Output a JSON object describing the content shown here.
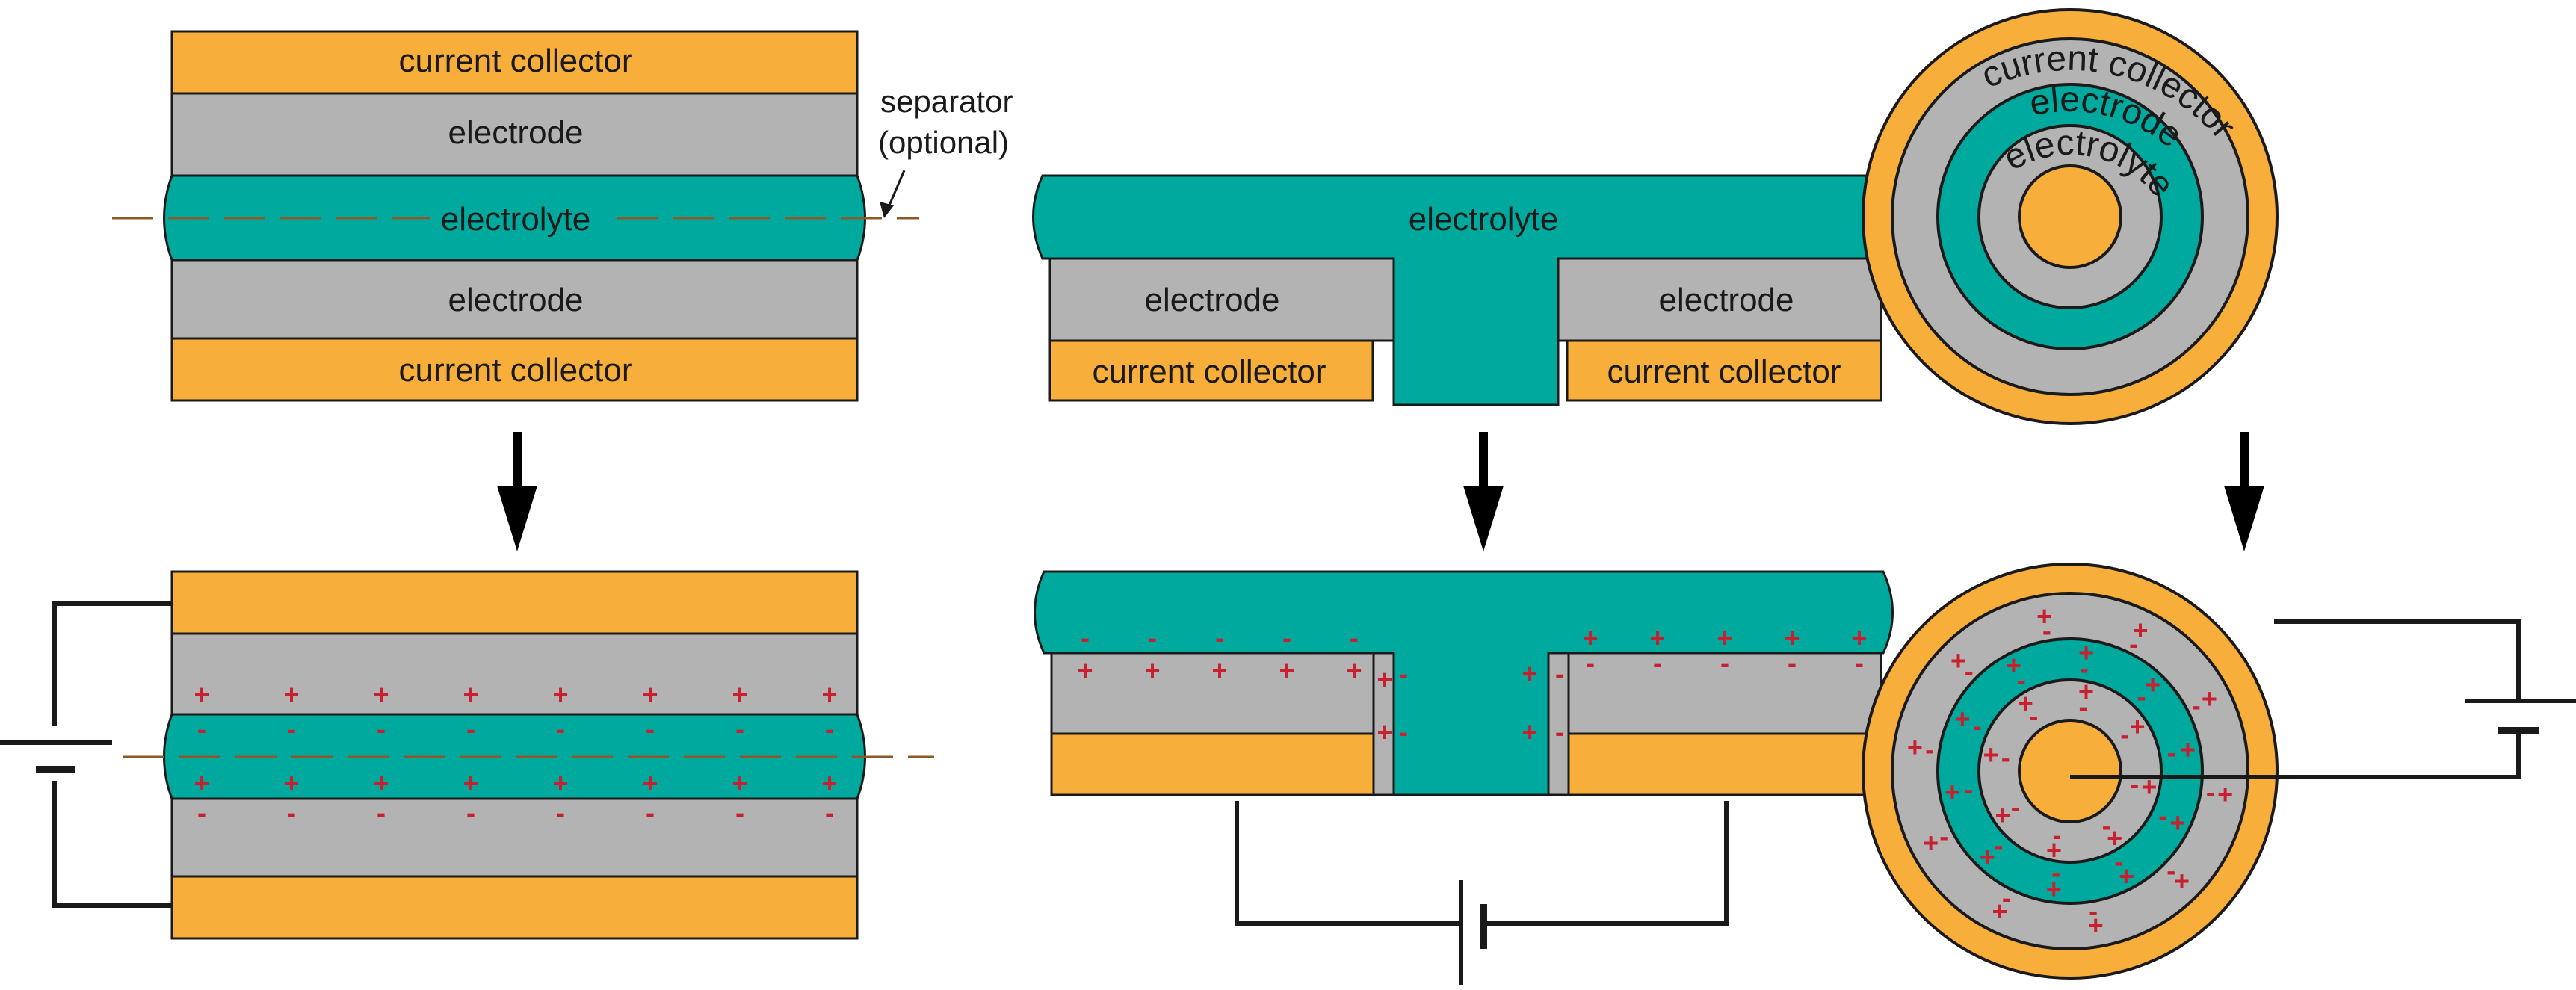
{
  "colors": {
    "collector": "#f8ae3a",
    "electrode": "#b3b3b3",
    "electrolyte": "#00a99d",
    "charge": "#c8202f",
    "separator": "#8b5a2b",
    "stroke": "#1a1a1a"
  },
  "labels": {
    "current_collector": "current collector",
    "electrode": "electrode",
    "electrolyte": "electrolyte",
    "separator_line1": "separator",
    "separator_line2": "(optional)"
  },
  "panels": {
    "stacked": {
      "top_collector": "current collector",
      "top_electrode": "electrode",
      "electrolyte": "electrolyte",
      "bottom_electrode": "electrode",
      "bottom_collector": "current collector"
    },
    "interdigitated": {
      "electrolyte": "electrolyte",
      "left_electrode": "electrode",
      "right_electrode": "electrode",
      "left_collector": "current collector",
      "right_collector": "current collector"
    },
    "cylindrical": {
      "ring_outer": "current collector",
      "ring_middle": "electrode",
      "ring_inner": "electrolyte"
    }
  },
  "charges": {
    "plus": "+",
    "minus": "-"
  }
}
